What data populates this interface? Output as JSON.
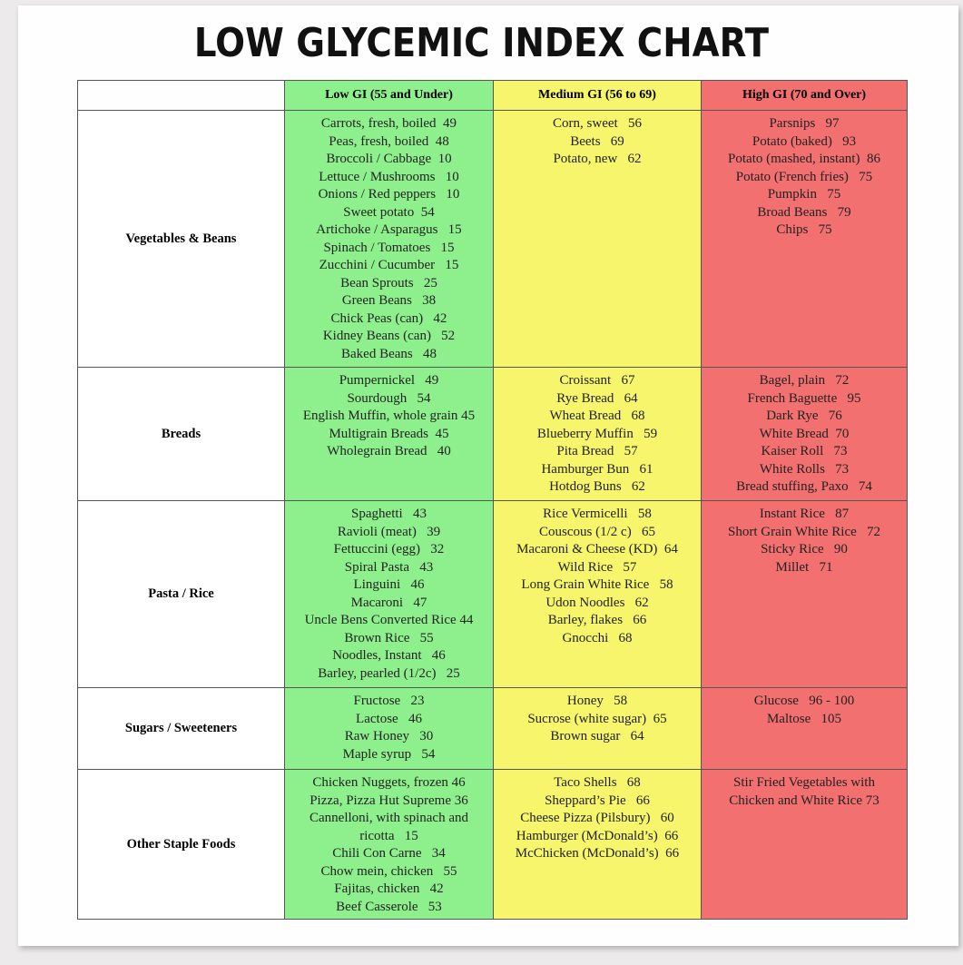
{
  "title": "LOW GLYCEMIC INDEX CHART",
  "table": {
    "header": [
      "Low GI (55 and Under)",
      "Medium GI (56 to 69)",
      "High GI (70 and Over)"
    ],
    "rows": [
      {
        "category": "Vegetables & Beans",
        "cells": [
          [
            "Carrots, fresh, boiled  49",
            "Peas, fresh, boiled  48",
            "Broccoli / Cabbage  10",
            "Lettuce / Mushrooms   10",
            "Onions / Red peppers   10",
            "Sweet potato  54",
            "Artichoke / Asparagus   15",
            "Spinach / Tomatoes   15",
            "Zucchini / Cucumber   15",
            "Bean Sprouts   25",
            "Green Beans   38",
            "Chick Peas (can)   42",
            "Kidney Beans (can)   52",
            "Baked Beans   48"
          ],
          [
            "Corn, sweet   56",
            "Beets   69",
            "Potato, new   62"
          ],
          [
            "Parsnips   97",
            "Potato (baked)   93",
            "Potato (mashed, instant)  86",
            "Potato (French fries)   75",
            "Pumpkin   75",
            "Broad Beans   79",
            "Chips   75"
          ]
        ]
      },
      {
        "category": "Breads",
        "cells": [
          [
            "Pumpernickel   49",
            "Sourdough   54",
            "English Muffin, whole grain 45",
            "Multigrain Breads  45",
            "Wholegrain Bread   40"
          ],
          [
            "Croissant   67",
            "Rye Bread   64",
            "Wheat Bread   68",
            "Blueberry Muffin   59",
            "Pita Bread   57",
            "Hamburger Bun   61",
            "Hotdog Buns   62"
          ],
          [
            "Bagel, plain   72",
            "French Baguette   95",
            "Dark Rye   76",
            "White Bread  70",
            "Kaiser Roll   73",
            "White Rolls   73",
            "Bread stuffing, Paxo   74"
          ]
        ]
      },
      {
        "category": "Pasta / Rice",
        "cells": [
          [
            "Spaghetti   43",
            "Ravioli (meat)   39",
            "Fettuccini (egg)   32",
            "Spiral Pasta   43",
            "Linguini   46",
            "Macaroni   47",
            "Uncle Bens Converted Rice 44",
            "Brown Rice   55",
            "Noodles, Instant   46",
            "Barley, pearled (1/2c)   25"
          ],
          [
            "Rice Vermicelli   58",
            "Couscous (1/2 c)   65",
            "Macaroni & Cheese (KD)  64",
            "Wild Rice   57",
            "Long Grain White Rice   58",
            "Udon Noodles   62",
            "Barley, flakes   66",
            "Gnocchi   68"
          ],
          [
            "Instant Rice   87",
            "Short Grain White Rice   72",
            "Sticky Rice   90",
            "Millet   71"
          ]
        ]
      },
      {
        "category": "Sugars / Sweeteners",
        "cells": [
          [
            "Fructose   23",
            "Lactose   46",
            "Raw Honey   30",
            "Maple syrup   54"
          ],
          [
            "Honey   58",
            "Sucrose (white sugar)  65",
            "Brown sugar   64"
          ],
          [
            "Glucose   96 - 100",
            "Maltose   105"
          ]
        ]
      },
      {
        "category": "Other Staple Foods",
        "cells": [
          [
            "Chicken Nuggets, frozen 46",
            "Pizza, Pizza Hut Supreme 36",
            "Cannelloni, with spinach and",
            "ricotta   15",
            "Chili Con Carne   34",
            "Chow mein, chicken   55",
            "Fajitas, chicken   42",
            "Beef Casserole   53"
          ],
          [
            "Taco Shells   68",
            "Sheppard’s Pie   66",
            "Cheese Pizza (Pilsbury)   60",
            "Hamburger (McDonald’s)  66",
            "McChicken (McDonald’s)  66"
          ],
          [
            "Stir Fried Vegetables with",
            "Chicken and White Rice 73"
          ]
        ]
      }
    ]
  }
}
